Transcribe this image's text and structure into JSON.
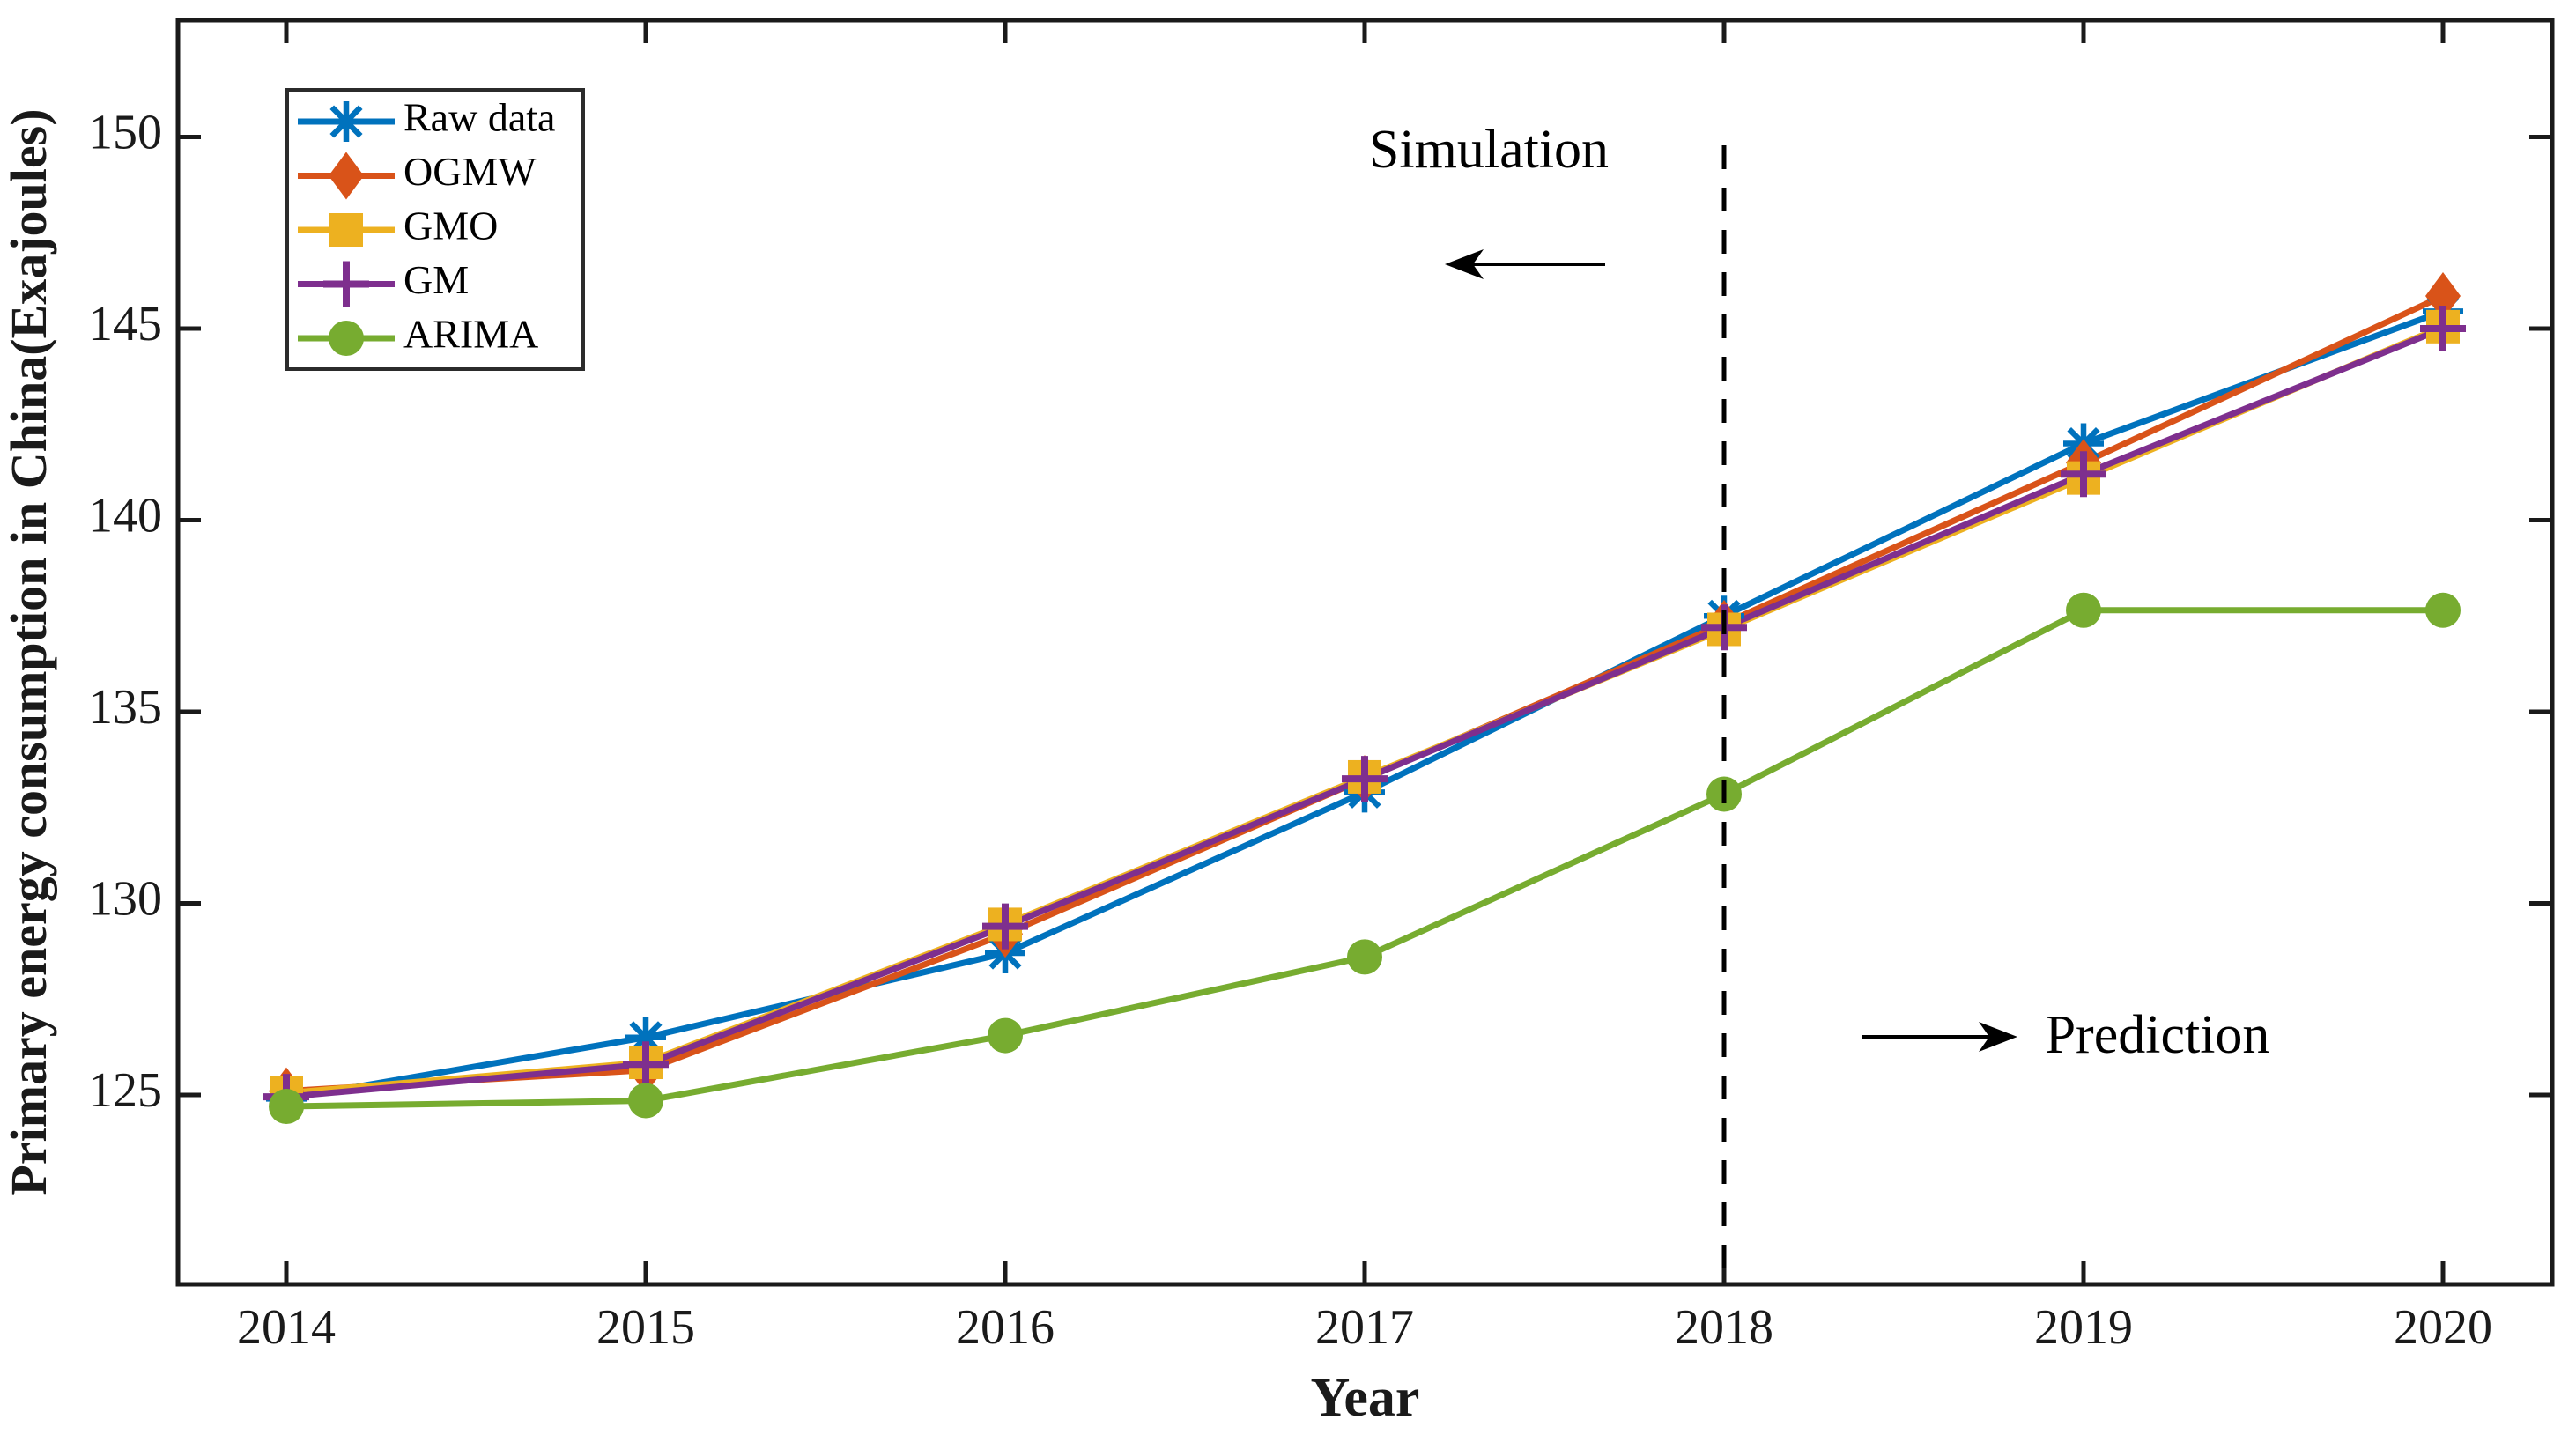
{
  "figure": {
    "background": "#ffffff",
    "axis_color": "#1a1a1a"
  },
  "chart_data": {
    "type": "line",
    "title": "",
    "xlabel": "Year",
    "ylabel": "Primary energy consumption in China(Exajoules)",
    "x": [
      2014,
      2015,
      2016,
      2017,
      2018,
      2019,
      2020
    ],
    "x_tick_labels": [
      "2014",
      "2015",
      "2016",
      "2017",
      "2018",
      "2019",
      "2020"
    ],
    "y_ticks": [
      125,
      130,
      135,
      140,
      145,
      150
    ],
    "y_tick_labels": [
      "125",
      "130",
      "135",
      "140",
      "145",
      "150"
    ],
    "xlim": [
      2013.7,
      2020.3
    ],
    "ylim": [
      120.05,
      153.05
    ],
    "grid": false,
    "legend_position": "top-left",
    "series": [
      {
        "name": "Raw data",
        "color": "#0072BD",
        "marker": "asterisk",
        "values": [
          124.9,
          126.5,
          128.7,
          132.9,
          137.5,
          142.0,
          145.45
        ]
      },
      {
        "name": "OGMW",
        "color": "#D95319",
        "marker": "diamond",
        "values": [
          125.1,
          125.65,
          129.2,
          133.25,
          137.3,
          141.5,
          145.85
        ]
      },
      {
        "name": "GMO",
        "color": "#EDB120",
        "marker": "square",
        "values": [
          125.05,
          125.85,
          129.45,
          133.3,
          137.15,
          141.1,
          145.05
        ]
      },
      {
        "name": "GM",
        "color": "#7E2F8E",
        "marker": "plus",
        "values": [
          124.95,
          125.8,
          129.4,
          133.25,
          137.2,
          141.2,
          145.0
        ]
      },
      {
        "name": "ARIMA",
        "color": "#77AC30",
        "marker": "circle",
        "values": [
          124.7,
          124.85,
          126.55,
          128.6,
          132.85,
          137.65,
          137.65
        ]
      }
    ],
    "annotations": {
      "divider_year": 2018,
      "divider_style": "dashed",
      "simulation_label": "Simulation",
      "prediction_label": "Prediction"
    }
  }
}
